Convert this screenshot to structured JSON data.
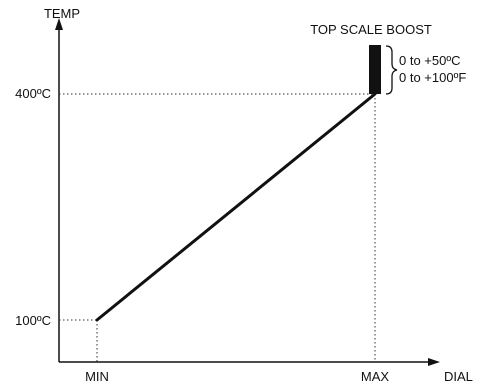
{
  "chart_data": {
    "type": "line",
    "ylabel": "TEMP",
    "xlabel": "DIAL",
    "x_tick_labels": [
      "MIN",
      "MAX"
    ],
    "y_tick_labels": [
      "100ºC",
      "400ºC"
    ],
    "series": [
      {
        "x": [
          "MIN",
          "MAX"
        ],
        "y": [
          100,
          400
        ]
      }
    ],
    "annotation": {
      "title": "TOP SCALE BOOST",
      "lines": [
        "0 to +50ºC",
        "0 to +100ºF"
      ]
    }
  }
}
